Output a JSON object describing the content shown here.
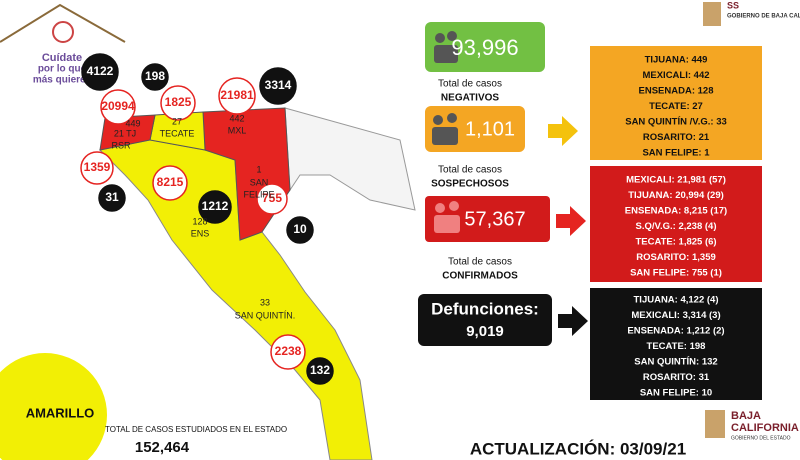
{
  "header": {
    "slogan": [
      "Cuídate",
      "por lo que",
      "más quieres"
    ],
    "agency": "SS",
    "government": "GOBIERNO DE BAJA CALIFORNIA"
  },
  "map": {
    "counts": [
      "4122",
      "198",
      "20994",
      "1825",
      "21981",
      "3314",
      "1359",
      "31",
      "8215",
      "1212",
      "755",
      "10",
      "2238",
      "132"
    ],
    "labels": [
      "449",
      "21 TJ",
      "RSR",
      "27",
      "TECATE",
      "442",
      "MXL",
      "1",
      "SAN",
      "FELIPE",
      "128",
      "ENS",
      "33",
      "SAN QUINTÍN."
    ]
  },
  "status": "AMARILLO",
  "total_studied": {
    "label": "TOTAL DE CASOS ESTUDIADOS EN EL ESTADO",
    "value": "152,464"
  },
  "summaries": [
    {
      "value": "93,996",
      "caption": [
        "Total de casos",
        "NEGATIVOS"
      ]
    },
    {
      "value": "1,101",
      "caption": [
        "Total de casos",
        "SOSPECHOSOS"
      ]
    },
    {
      "value": "57,367",
      "caption": [
        "Total de casos",
        "CONFIRMADOS"
      ]
    }
  ],
  "deaths": {
    "label": "Defunciones:",
    "value": "9,019"
  },
  "breakdowns": [
    [
      "TIJUANA: 449",
      "MEXICALI: 442",
      "ENSENADA: 128",
      "TECATE: 27",
      "SAN QUINTÍN /V.G.: 33",
      "ROSARITO: 21",
      "SAN FELIPE: 1"
    ],
    [
      "MEXICALI: 21,981 (57)",
      "TIJUANA: 20,994 (29)",
      "ENSENADA: 8,215 (17)",
      "S.Q/V.G.: 2,238 (4)",
      "TECATE: 1,825 (6)",
      "ROSARITO: 1,359",
      "SAN FELIPE: 755 (1)"
    ],
    [
      "TIJUANA: 4,122 (4)",
      "MEXICALI: 3,314 (3)",
      "ENSENADA: 1,212 (2)",
      "TECATE: 198",
      "SAN QUINTÍN: 132",
      "ROSARITO: 31",
      "SAN FELIPE: 10"
    ]
  ],
  "update": "ACTUALIZACIÓN: 03/09/21",
  "footer": {
    "title": "BAJA",
    "subtitle": "CALIFORNIA",
    "tagline": "GOBIERNO DEL ESTADO"
  }
}
